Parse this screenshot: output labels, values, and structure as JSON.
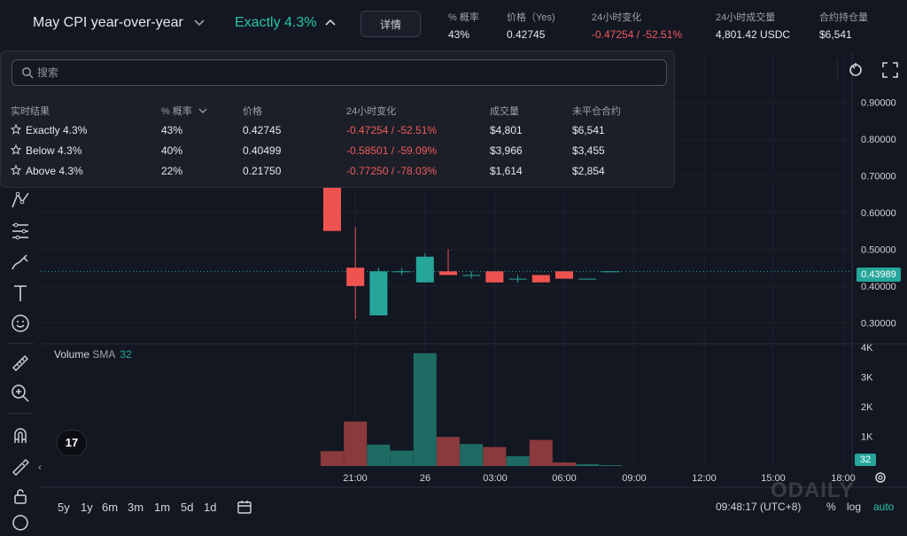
{
  "header": {
    "market_title": "May CPI year-over-year",
    "selected_outcome": "Exactly 4.3%",
    "details_label": "详情",
    "stats": [
      {
        "label": "% 概率",
        "value": "43%",
        "negative": false
      },
      {
        "label": "价格（Yes)",
        "value": "0.42745",
        "negative": false
      },
      {
        "label": "24小时变化",
        "value": "-0.47254 / -52.51%",
        "negative": true
      },
      {
        "label": "24小时成交量",
        "value": "4,801.42 USDC",
        "negative": false
      },
      {
        "label": "合约持仓量",
        "value": "$6,541",
        "negative": false
      }
    ]
  },
  "dropdown": {
    "search_placeholder": "搜索",
    "columns": [
      "实时结果",
      "% 概率",
      "价格",
      "24小时变化",
      "成交量",
      "未平仓合约"
    ],
    "rows": [
      {
        "name": "Exactly 4.3%",
        "prob": "43%",
        "price": "0.42745",
        "change": "-0.47254 / -52.51%",
        "volume": "$4,801",
        "oi": "$6,541"
      },
      {
        "name": "Below 4.3%",
        "prob": "40%",
        "price": "0.40499",
        "change": "-0.58501 / -59.09%",
        "volume": "$3,966",
        "oi": "$3,455"
      },
      {
        "name": "Above 4.3%",
        "prob": "22%",
        "price": "0.21750",
        "change": "-0.77250 / -78.03%",
        "volume": "$1,614",
        "oi": "$2,854"
      }
    ]
  },
  "chart": {
    "price_axis_labels": [
      "0.90000",
      "0.80000",
      "0.70000",
      "0.60000",
      "0.50000",
      "0.40000",
      "0.30000"
    ],
    "current_price_tag": "0.43989",
    "volume_axis_labels": [
      "4K",
      "3K",
      "2K",
      "1K"
    ],
    "volume_tag": "32",
    "time_labels": [
      "21:00",
      "26",
      "03:00",
      "06:00",
      "09:00",
      "12:00",
      "15:00",
      "18:00"
    ],
    "volume_legend": {
      "name": "Volume",
      "sma": "SMA",
      "length": "32"
    },
    "logo_text": "17"
  },
  "chart_data": {
    "type": "candlestick",
    "price_range": [
      0.25,
      0.95
    ],
    "volume_range": [
      0,
      4000
    ],
    "candles": [
      {
        "o": 0.7,
        "h": 0.7,
        "l": 0.55,
        "c": 0.55
      },
      {
        "o": 0.45,
        "h": 0.56,
        "l": 0.31,
        "c": 0.4
      },
      {
        "o": 0.32,
        "h": 0.45,
        "l": 0.32,
        "c": 0.44
      },
      {
        "o": 0.44,
        "h": 0.45,
        "l": 0.43,
        "c": 0.44
      },
      {
        "o": 0.41,
        "h": 0.49,
        "l": 0.41,
        "c": 0.48
      },
      {
        "o": 0.44,
        "h": 0.5,
        "l": 0.43,
        "c": 0.43
      },
      {
        "o": 0.43,
        "h": 0.44,
        "l": 0.42,
        "c": 0.43
      },
      {
        "o": 0.44,
        "h": 0.44,
        "l": 0.41,
        "c": 0.41
      },
      {
        "o": 0.42,
        "h": 0.43,
        "l": 0.41,
        "c": 0.42
      },
      {
        "o": 0.43,
        "h": 0.43,
        "l": 0.41,
        "c": 0.41
      },
      {
        "o": 0.44,
        "h": 0.44,
        "l": 0.42,
        "c": 0.42
      },
      {
        "o": 0.42,
        "h": 0.42,
        "l": 0.42,
        "c": 0.42
      },
      {
        "o": 0.44,
        "h": 0.44,
        "l": 0.44,
        "c": 0.44
      }
    ],
    "volume": [
      500,
      1500,
      720,
      520,
      3800,
      980,
      740,
      640,
      330,
      880,
      120,
      60,
      30
    ],
    "volume_up": [
      false,
      false,
      true,
      true,
      true,
      false,
      true,
      false,
      true,
      false,
      false,
      true,
      true
    ]
  },
  "bottom": {
    "ranges": [
      "5y",
      "1y",
      "6m",
      "3m",
      "1m",
      "5d",
      "1d"
    ],
    "clock": "09:48:17 (UTC+8)",
    "percent": "%",
    "log": "log",
    "auto": "auto",
    "watermark": "ODAILY"
  },
  "colors": {
    "up": "#26a69a",
    "down": "#ef5350",
    "accent": "#26c6a3",
    "negative": "#f05a5f"
  }
}
